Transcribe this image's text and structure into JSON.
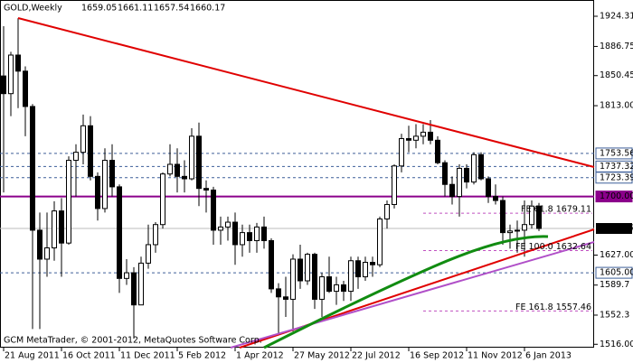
{
  "chart_data": {
    "type": "candlestick",
    "header": {
      "symbol": "GOLD,Weekly",
      "quote": [
        1659.05,
        1661.11,
        1657.54,
        1660.17
      ]
    },
    "footer": "GCM MetaTrader, © 2001-2012, MetaQuotes Software Corp.",
    "categories": [
      "21 Aug 2011",
      null,
      null,
      null,
      null,
      null,
      null,
      null,
      "16 Oct 2011",
      null,
      null,
      null,
      null,
      null,
      null,
      null,
      "11 Dec 2011",
      null,
      null,
      null,
      null,
      null,
      null,
      null,
      "5 Feb 2012",
      null,
      null,
      null,
      null,
      null,
      null,
      null,
      "1 Apr 2012",
      null,
      null,
      null,
      null,
      null,
      null,
      null,
      "27 May 2012",
      null,
      null,
      null,
      null,
      null,
      null,
      null,
      "22 Jul 2012",
      null,
      null,
      null,
      null,
      null,
      null,
      null,
      "16 Sep 2012",
      null,
      null,
      null,
      null,
      null,
      null,
      null,
      "11 Nov 2012",
      null,
      null,
      null,
      null,
      null,
      null,
      null,
      "6 Jan 2013",
      null,
      null
    ],
    "open": [
      1850,
      1828,
      1876,
      1856,
      1812,
      1658,
      1622,
      1636,
      1682,
      1642,
      1745,
      1755,
      1788,
      1725,
      1685,
      1745,
      1712,
      1598,
      1605,
      1565,
      1617,
      1640,
      1665,
      1728,
      1740,
      1725,
      1722,
      1775,
      1710,
      1708,
      1658,
      1662,
      1668,
      1640,
      1655,
      1645,
      1662,
      1645,
      1585,
      1575,
      1572,
      1622,
      1595,
      1628,
      1572,
      1600,
      1582,
      1590,
      1582,
      1620,
      1600,
      1618,
      1615,
      1672,
      1690,
      1738,
      1772,
      1770,
      1775,
      1780,
      1770,
      1742,
      1715,
      1700,
      1735,
      1718,
      1752,
      1722,
      1700,
      1695,
      1655,
      1657,
      1658,
      1665,
      1688
    ],
    "high": [
      1912,
      1880,
      1922,
      1862,
      1815,
      1680,
      1680,
      1694,
      1698,
      1750,
      1765,
      1802,
      1800,
      1730,
      1760,
      1765,
      1715,
      1622,
      1612,
      1625,
      1665,
      1668,
      1730,
      1765,
      1760,
      1745,
      1785,
      1792,
      1720,
      1712,
      1675,
      1675,
      1680,
      1665,
      1665,
      1667,
      1675,
      1648,
      1592,
      1600,
      1628,
      1640,
      1630,
      1630,
      1605,
      1625,
      1600,
      1595,
      1625,
      1625,
      1625,
      1625,
      1675,
      1695,
      1740,
      1778,
      1788,
      1790,
      1790,
      1795,
      1775,
      1745,
      1725,
      1740,
      1740,
      1755,
      1755,
      1725,
      1715,
      1700,
      1665,
      1670,
      1695,
      1695,
      1692
    ],
    "low": [
      1705,
      1800,
      1810,
      1775,
      1535,
      1535,
      1600,
      1620,
      1600,
      1640,
      1700,
      1740,
      1720,
      1670,
      1680,
      1700,
      1580,
      1590,
      1523,
      1565,
      1610,
      1630,
      1660,
      1725,
      1705,
      1705,
      1720,
      1688,
      1680,
      1640,
      1640,
      1645,
      1615,
      1625,
      1630,
      1630,
      1635,
      1580,
      1527,
      1550,
      1532,
      1585,
      1590,
      1560,
      1550,
      1580,
      1565,
      1570,
      1570,
      1585,
      1595,
      1600,
      1612,
      1660,
      1685,
      1730,
      1755,
      1760,
      1765,
      1765,
      1740,
      1700,
      1690,
      1675,
      1710,
      1715,
      1720,
      1692,
      1690,
      1640,
      1635,
      1630,
      1625,
      1660,
      1657
    ],
    "close": [
      1828,
      1876,
      1856,
      1812,
      1658,
      1622,
      1636,
      1682,
      1642,
      1745,
      1755,
      1788,
      1725,
      1685,
      1745,
      1712,
      1598,
      1605,
      1565,
      1617,
      1640,
      1665,
      1728,
      1740,
      1725,
      1722,
      1775,
      1710,
      1708,
      1658,
      1662,
      1668,
      1640,
      1655,
      1645,
      1662,
      1645,
      1585,
      1575,
      1572,
      1622,
      1595,
      1628,
      1572,
      1600,
      1582,
      1590,
      1582,
      1620,
      1600,
      1618,
      1615,
      1672,
      1690,
      1738,
      1772,
      1770,
      1775,
      1780,
      1770,
      1742,
      1715,
      1700,
      1735,
      1718,
      1752,
      1722,
      1700,
      1695,
      1655,
      1657,
      1658,
      1665,
      1688,
      1660.17
    ],
    "ylim": [
      1511.81,
      1944.56
    ],
    "yticks": [
      1924.31,
      1886.75,
      1850.45,
      {
        "value": 1813,
        "label": "1813.00"
      },
      {
        "value": 1627,
        "label": "1627.00"
      },
      1589.7,
      1552.3,
      {
        "value": 1516,
        "label": "1516.00"
      }
    ],
    "levels": [
      {
        "value": 1753.56,
        "color": "#3d5f99"
      },
      {
        "value": 1737.32,
        "color": "#3d5f99"
      },
      {
        "value": 1723.39,
        "color": "#3d5f99"
      },
      {
        "value": 1700,
        "label": "1700.00",
        "color": "#8b008b"
      },
      {
        "value": 1605,
        "label": "1605.00",
        "color": "#3d5f99"
      }
    ],
    "fibo": [
      {
        "value": 1679.11,
        "label": "FE 61.8 1679.11"
      },
      {
        "value": 1632.64,
        "label": "FE 100.0 1632.64"
      },
      {
        "value": 1557.46,
        "label": "FE 161.8 1557.46"
      }
    ],
    "bull_color": "#ffffff",
    "bear_color": "#000000"
  }
}
